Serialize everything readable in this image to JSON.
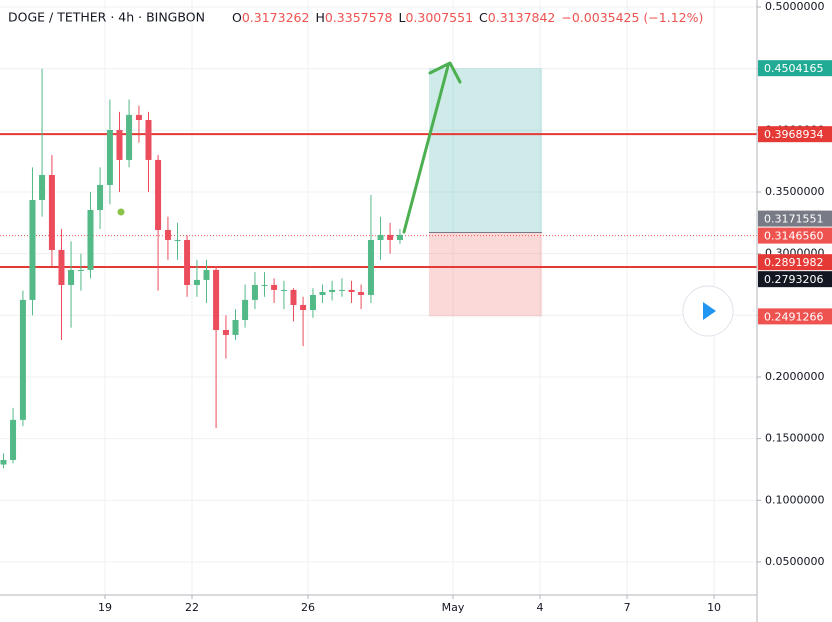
{
  "chart_data": {
    "type": "candlestick",
    "title": "DOGE / TETHER · 4h · BINGBON",
    "legend": [
      {
        "key": "O",
        "value": 0.3173262
      },
      {
        "key": "H",
        "value": 0.3357578
      },
      {
        "key": "L",
        "value": 0.3007551
      },
      {
        "key": "C",
        "value": 0.3137842
      }
    ],
    "change": "−0.0035425 (−1.12%)",
    "x": [
      15.5,
      15.83,
      16.17,
      16.5,
      16.83,
      17.17,
      17.5,
      17.83,
      18.17,
      18.5,
      18.83,
      19.17,
      19.5,
      19.83,
      20.17,
      20.5,
      20.83,
      21.17,
      21.5,
      21.83,
      22.17,
      22.5,
      22.83,
      23.17,
      23.5,
      23.83,
      24.17,
      24.5,
      24.83,
      25.17,
      25.5,
      25.83,
      26.17,
      26.5,
      26.83,
      27.17,
      27.5,
      27.83,
      28.17,
      28.5,
      28.83,
      29.17
    ],
    "open": [
      0.129,
      0.1327,
      0.1652,
      0.2625,
      0.3435,
      0.3638,
      0.303,
      0.2746,
      0.2868,
      0.2868,
      0.3354,
      0.3557,
      0.4003,
      0.376,
      0.4125,
      0.4084,
      0.376,
      0.3192,
      0.3111,
      0.3111,
      0.2746,
      0.2787,
      0.2868,
      0.2381,
      0.2341,
      0.2462,
      0.2625,
      0.2746,
      0.2746,
      0.2706,
      0.2706,
      0.2584,
      0.2543,
      0.2665,
      0.2689,
      0.2706,
      0.2706,
      0.2689,
      0.2665,
      0.3111,
      0.3152,
      0.3111
    ],
    "high": [
      0.138,
      0.175,
      0.27,
      0.37,
      0.45,
      0.38,
      0.32,
      0.31,
      0.3,
      0.35,
      0.37,
      0.425,
      0.415,
      0.425,
      0.42,
      0.415,
      0.38,
      0.33,
      0.325,
      0.315,
      0.295,
      0.295,
      0.29,
      0.25,
      0.255,
      0.275,
      0.285,
      0.285,
      0.28,
      0.278,
      0.272,
      0.265,
      0.272,
      0.275,
      0.278,
      0.28,
      0.278,
      0.275,
      0.3476,
      0.33,
      0.325,
      0.32
    ],
    "low": [
      0.126,
      0.13,
      0.16,
      0.25,
      0.33,
      0.29,
      0.23,
      0.24,
      0.27,
      0.28,
      0.32,
      0.34,
      0.35,
      0.37,
      0.39,
      0.35,
      0.27,
      0.295,
      0.295,
      0.265,
      0.265,
      0.26,
      0.1585,
      0.215,
      0.23,
      0.24,
      0.255,
      0.265,
      0.26,
      0.255,
      0.245,
      0.225,
      0.248,
      0.26,
      0.262,
      0.265,
      0.26,
      0.255,
      0.26,
      0.295,
      0.3,
      0.308
    ],
    "close": [
      0.1327,
      0.1652,
      0.2625,
      0.3435,
      0.3638,
      0.303,
      0.2746,
      0.2868,
      0.2868,
      0.3354,
      0.3557,
      0.4003,
      0.376,
      0.4125,
      0.4084,
      0.376,
      0.3192,
      0.3111,
      0.3111,
      0.2746,
      0.2787,
      0.2868,
      0.2381,
      0.2341,
      0.2462,
      0.2625,
      0.2746,
      0.2746,
      0.2706,
      0.2706,
      0.2584,
      0.2543,
      0.2665,
      0.2689,
      0.2706,
      0.2706,
      0.2689,
      0.2665,
      0.3111,
      0.3152,
      0.3111,
      0.3152
    ],
    "up_color": "#53b987",
    "down_color": "#eb4d5c",
    "xlim": [
      15.38,
      41.48
    ],
    "ylim": [
      0.0232,
      0.5057
    ],
    "xticks": [
      19,
      22,
      26,
      {
        "value": 31,
        "label": "May"
      },
      {
        "value": 34,
        "label": "4"
      },
      {
        "value": 37,
        "label": "7"
      },
      {
        "value": 40,
        "label": "10"
      }
    ],
    "yticks": [
      {
        "value": 0.05,
        "label": "0.0500000"
      },
      {
        "value": 0.1,
        "label": "0.1000000"
      },
      {
        "value": 0.15,
        "label": "0.1500000"
      },
      {
        "value": 0.2,
        "label": "0.2000000"
      },
      {
        "value": 0.25,
        "label": "0.2500000"
      },
      {
        "value": 0.3,
        "label": "0.3000000"
      },
      {
        "value": 0.35,
        "label": "0.3500000"
      },
      {
        "value": 0.4,
        "label": "0.4000000"
      },
      {
        "value": 0.45,
        "label": "0.4500000"
      },
      {
        "value": 0.5,
        "label": "0.5000000"
      }
    ],
    "grid": true,
    "position_x": [
      30.17,
      34.07
    ],
    "markers": [
      {
        "value": 0.4504165,
        "color": "#22ab94",
        "role": "target"
      },
      {
        "value": 0.3968934,
        "color": "#e53935",
        "line": "solid"
      },
      {
        "value": 0.3171551,
        "color": "#787b86",
        "role": "entry"
      },
      {
        "value": {
          "value": 0.314656,
          "label": "0.3146560"
        },
        "color": "#ef5350",
        "line": "dotted"
      },
      {
        "value": 0.2891982,
        "color": "#e53935",
        "line": "solid"
      },
      {
        "value": 0.2793206,
        "color": "#131722"
      },
      {
        "value": 0.2491266,
        "color": "#ef5350",
        "role": "stop"
      }
    ]
  }
}
